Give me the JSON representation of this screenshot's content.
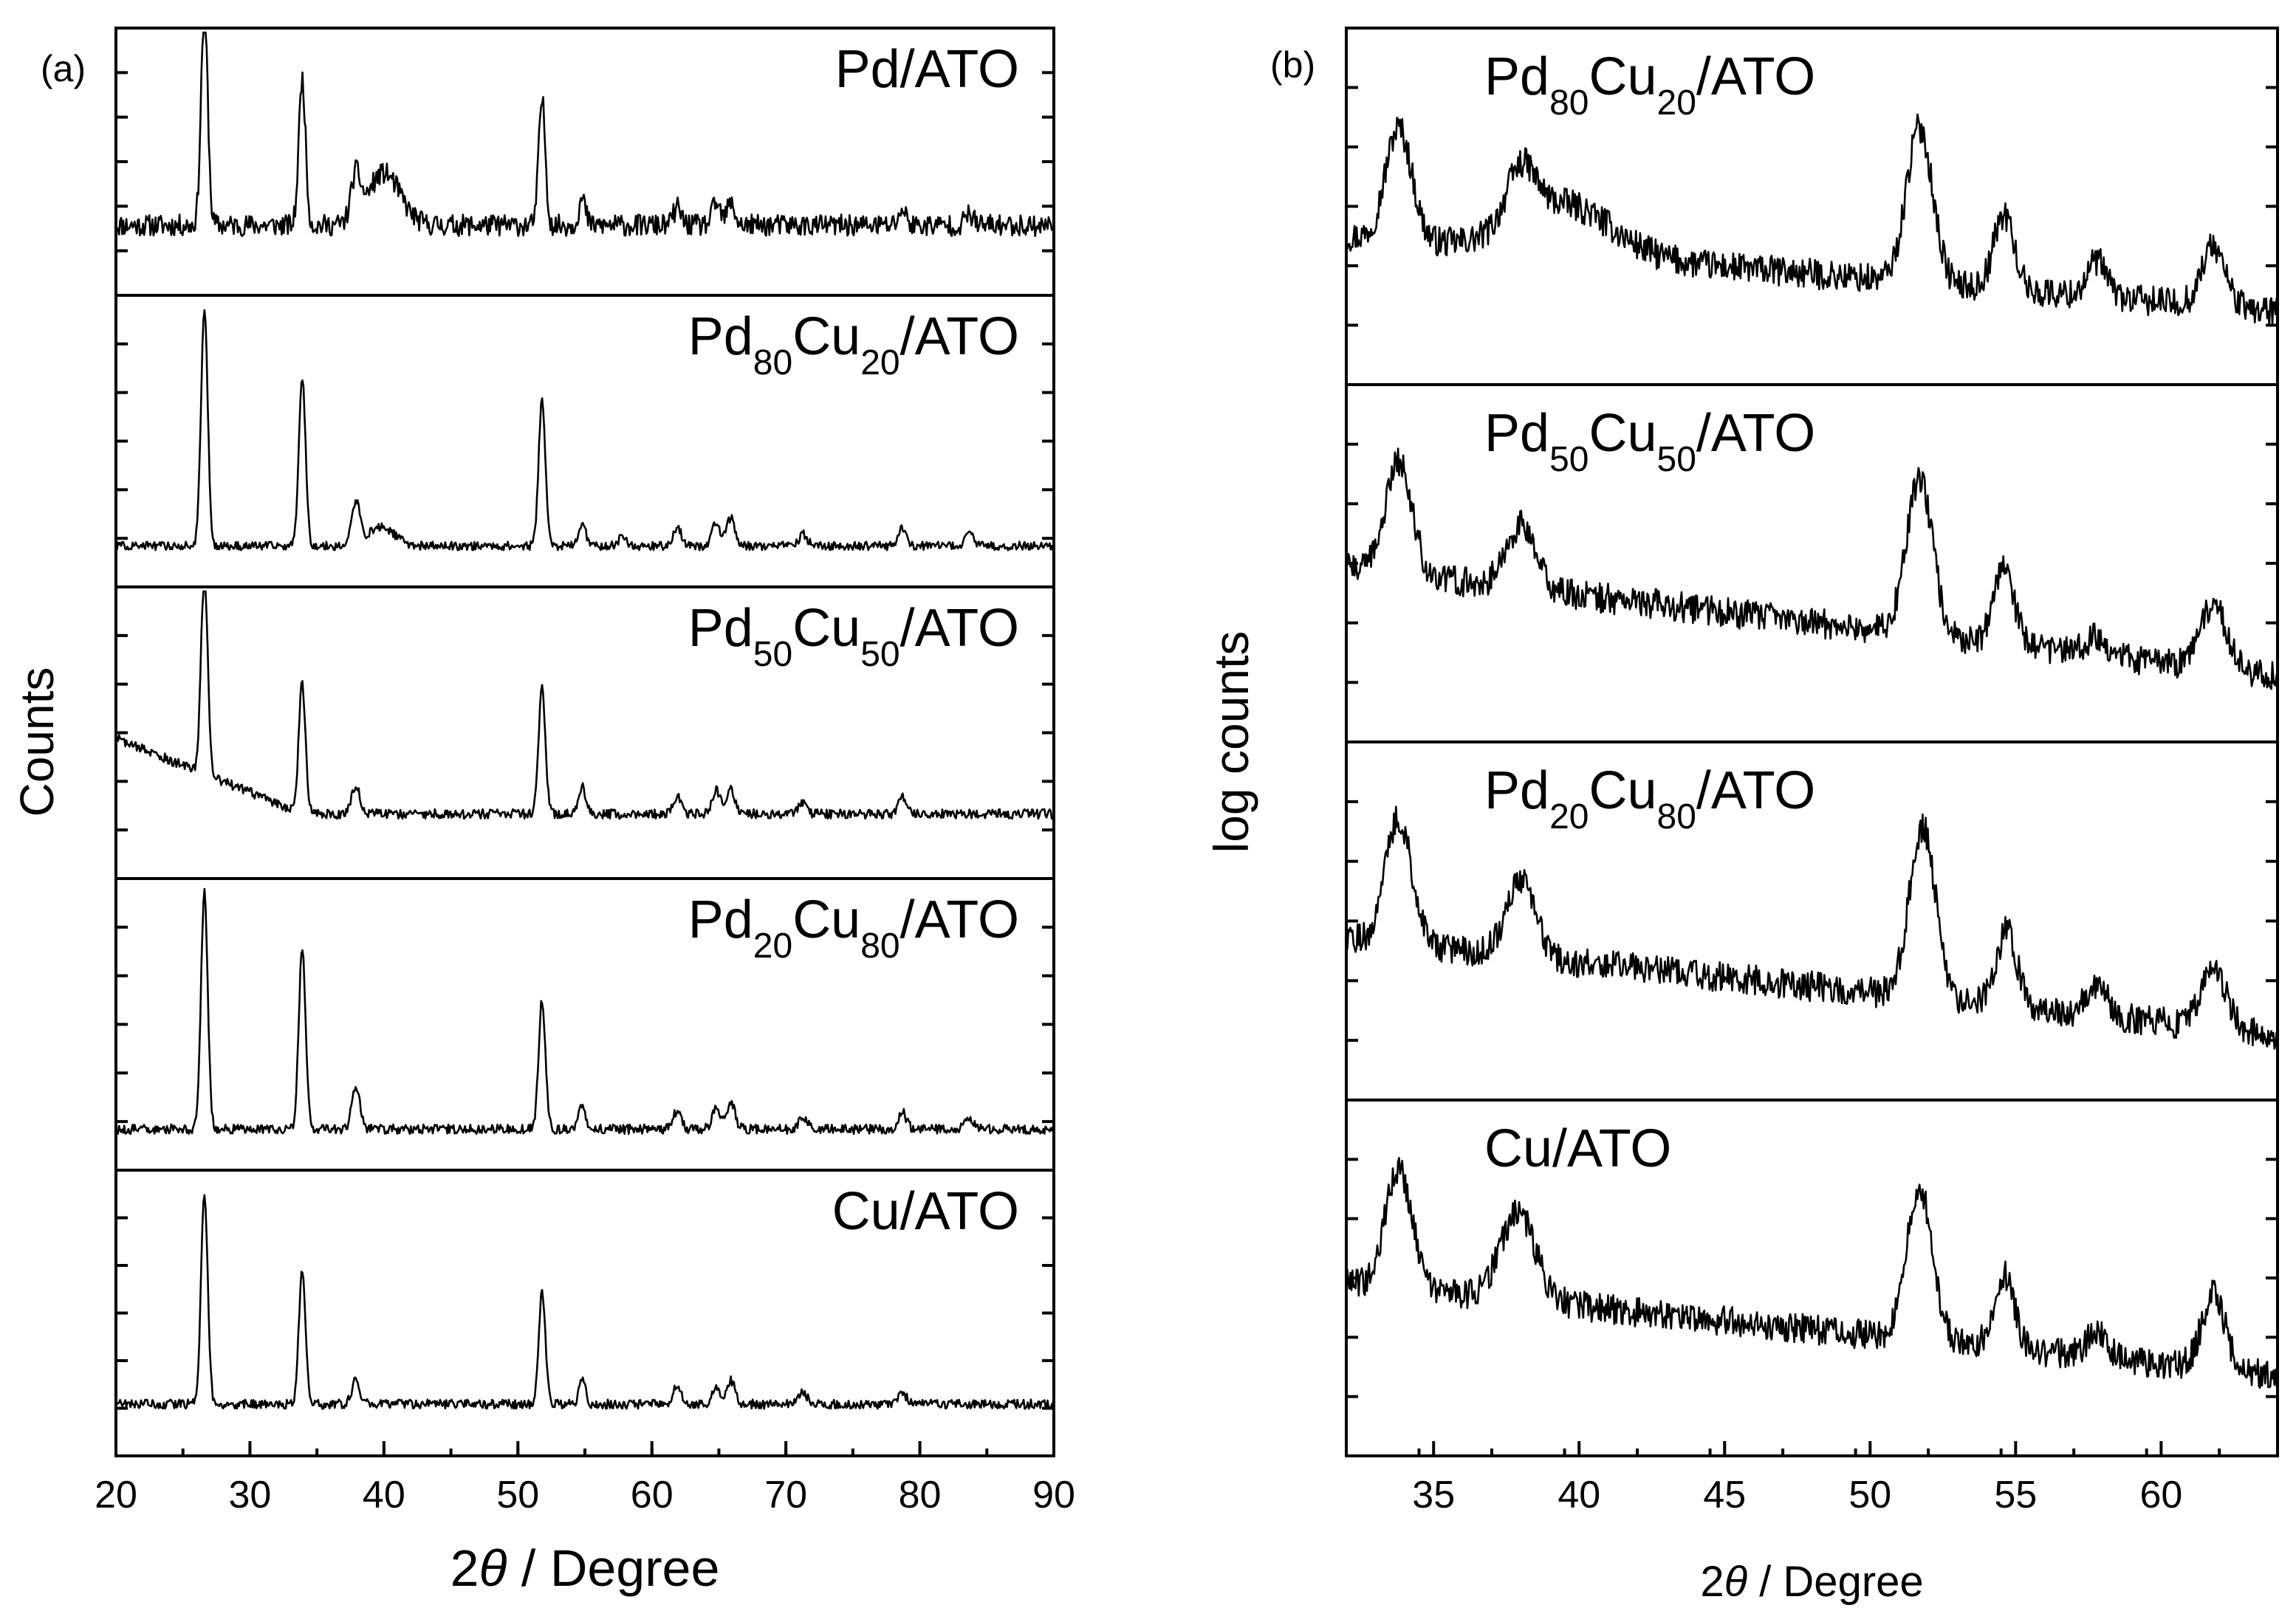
{
  "chart_data": [
    {
      "panel": "(a)",
      "type": "line",
      "xlabel_prefix": "2",
      "xlabel_symbol": "θ",
      "xlabel_suffix": "/ Degree",
      "ylabel": "Counts",
      "xlim": [
        20,
        90
      ],
      "xticks": [
        20,
        30,
        40,
        50,
        60,
        70,
        80,
        90
      ],
      "series": [
        {
          "name": "Pd/ATO",
          "label_base": "Pd/ATO",
          "baseline": 0.2,
          "noise": 0.05,
          "peaks": [
            [
              26.6,
              1.0,
              0.25
            ],
            [
              33.9,
              0.68,
              0.25
            ],
            [
              37.9,
              0.2,
              0.35
            ],
            [
              40.0,
              0.24,
              1.2
            ],
            [
              51.8,
              0.58,
              0.25
            ],
            [
              54.8,
              0.12,
              0.25
            ],
            [
              61.9,
              0.08,
              0.3
            ],
            [
              64.8,
              0.1,
              0.3
            ],
            [
              65.9,
              0.1,
              0.3
            ],
            [
              78.7,
              0.07,
              0.3
            ],
            [
              83.7,
              0.05,
              0.3
            ]
          ]
        },
        {
          "name": "Pd80Cu20/ATO",
          "baseline": 0.05,
          "noise": 0.018,
          "peaks": [
            [
              26.6,
              1.0,
              0.25
            ],
            [
              33.9,
              0.72,
              0.25
            ],
            [
              37.9,
              0.18,
              0.3
            ],
            [
              39.8,
              0.08,
              1.0
            ],
            [
              51.8,
              0.62,
              0.25
            ],
            [
              54.8,
              0.1,
              0.25
            ],
            [
              57.8,
              0.04,
              0.3
            ],
            [
              61.9,
              0.08,
              0.3
            ],
            [
              64.8,
              0.1,
              0.3
            ],
            [
              65.9,
              0.12,
              0.3
            ],
            [
              71.3,
              0.05,
              0.3
            ],
            [
              78.7,
              0.08,
              0.3
            ],
            [
              83.7,
              0.06,
              0.3
            ]
          ]
        },
        {
          "name": "Pd50Cu50/ATO",
          "baseline": 0.05,
          "noise": 0.02,
          "slope": [
            20,
            0.42,
            34,
            0.1
          ],
          "peaks": [
            [
              26.6,
              0.85,
              0.25
            ],
            [
              33.9,
              0.55,
              0.25
            ],
            [
              37.9,
              0.12,
              0.3
            ],
            [
              51.8,
              0.53,
              0.25
            ],
            [
              54.8,
              0.12,
              0.25
            ],
            [
              61.9,
              0.07,
              0.3
            ],
            [
              64.8,
              0.1,
              0.3
            ],
            [
              65.9,
              0.1,
              0.3
            ],
            [
              71.3,
              0.05,
              0.3
            ],
            [
              78.7,
              0.07,
              0.3
            ]
          ]
        },
        {
          "name": "Pd20Cu80/ATO",
          "baseline": 0.05,
          "noise": 0.02,
          "peaks": [
            [
              26.6,
              1.0,
              0.25
            ],
            [
              33.9,
              0.78,
              0.25
            ],
            [
              37.9,
              0.18,
              0.3
            ],
            [
              51.8,
              0.55,
              0.25
            ],
            [
              54.8,
              0.1,
              0.25
            ],
            [
              61.9,
              0.08,
              0.3
            ],
            [
              64.8,
              0.1,
              0.3
            ],
            [
              65.9,
              0.12,
              0.3
            ],
            [
              71.3,
              0.05,
              0.3
            ],
            [
              78.7,
              0.07,
              0.3
            ],
            [
              83.7,
              0.05,
              0.3
            ]
          ]
        },
        {
          "name": "Cu/ATO",
          "baseline": 0.1,
          "noise": 0.02,
          "peaks": [
            [
              26.6,
              0.9,
              0.25
            ],
            [
              33.9,
              0.58,
              0.25
            ],
            [
              37.9,
              0.1,
              0.3
            ],
            [
              51.8,
              0.48,
              0.25
            ],
            [
              54.8,
              0.1,
              0.25
            ],
            [
              61.9,
              0.08,
              0.3
            ],
            [
              64.8,
              0.08,
              0.3
            ],
            [
              65.9,
              0.1,
              0.3
            ],
            [
              71.3,
              0.05,
              0.3
            ],
            [
              78.7,
              0.05,
              0.3
            ]
          ]
        }
      ]
    },
    {
      "panel": "(b)",
      "type": "line",
      "xlabel_prefix": "2",
      "xlabel_symbol": "θ",
      "xlabel_suffix": "/ Degree",
      "ylabel": "log counts",
      "xlim": [
        32,
        64
      ],
      "xticks": [
        35,
        40,
        45,
        50,
        55,
        60
      ],
      "series": [
        {
          "name": "Pd80Cu20/ATO",
          "noise": 0.06,
          "slope": [
            32,
            0.45,
            64,
            0.15
          ],
          "peaks": [
            [
              33.8,
              0.45,
              0.45
            ],
            [
              38.0,
              0.22,
              0.5
            ],
            [
              39.5,
              0.2,
              1.6
            ],
            [
              51.7,
              0.62,
              0.45
            ],
            [
              54.6,
              0.3,
              0.35
            ],
            [
              57.8,
              0.14,
              0.35
            ],
            [
              61.8,
              0.24,
              0.4
            ]
          ]
        },
        {
          "name": "Pd50Cu50/ATO",
          "noise": 0.06,
          "slope": [
            32,
            0.55,
            64,
            0.12
          ],
          "peaks": [
            [
              33.8,
              0.45,
              0.45
            ],
            [
              38.0,
              0.25,
              0.5
            ],
            [
              51.7,
              0.62,
              0.45
            ],
            [
              54.6,
              0.3,
              0.35
            ],
            [
              57.8,
              0.08,
              0.35
            ],
            [
              61.8,
              0.26,
              0.45
            ]
          ]
        },
        {
          "name": "Pd20Cu80/ATO",
          "noise": 0.06,
          "slope": [
            32,
            0.5,
            64,
            0.12
          ],
          "peaks": [
            [
              33.8,
              0.5,
              0.45
            ],
            [
              38.0,
              0.3,
              0.5
            ],
            [
              51.8,
              0.68,
              0.45
            ],
            [
              54.7,
              0.3,
              0.35
            ],
            [
              57.8,
              0.12,
              0.35
            ],
            [
              61.8,
              0.25,
              0.4
            ]
          ]
        },
        {
          "name": "Cu/ATO",
          "noise": 0.06,
          "slope": [
            32,
            0.55,
            64,
            0.18
          ],
          "peaks": [
            [
              33.8,
              0.48,
              0.45
            ],
            [
              37.9,
              0.35,
              0.6
            ],
            [
              51.7,
              0.6,
              0.45
            ],
            [
              54.6,
              0.3,
              0.35
            ],
            [
              57.8,
              0.1,
              0.35
            ],
            [
              61.8,
              0.3,
              0.4
            ]
          ]
        }
      ]
    }
  ]
}
